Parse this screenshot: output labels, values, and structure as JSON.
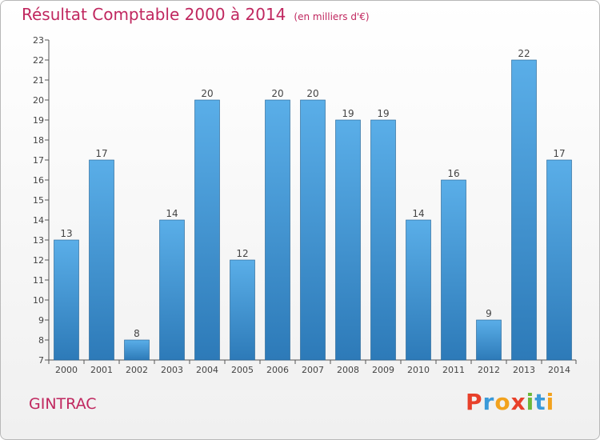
{
  "header": {
    "title": "Résultat Comptable 2000 à 2014",
    "subtitle": "(en milliers d'€)"
  },
  "footer": {
    "commune": "GINTRAC",
    "brand": "Proxiti",
    "brand_letters": [
      "P",
      "r",
      "o",
      "x",
      "i",
      "t",
      "i"
    ],
    "brand_colors": [
      "#e8402a",
      "#3a9ad9",
      "#f2a21d",
      "#e8402a",
      "#6cb83a",
      "#3a9ad9",
      "#f2a21d"
    ]
  },
  "colors": {
    "title": "#c0275f",
    "bar_light": "#5aaee8",
    "bar_dark": "#2d7ab8",
    "axis": "#555555",
    "text": "#444444"
  },
  "chart_data": {
    "type": "bar",
    "title": "Résultat Comptable 2000 à 2014",
    "subtitle": "(en milliers d'€)",
    "xlabel": "",
    "ylabel": "",
    "categories": [
      "2000",
      "2001",
      "2002",
      "2003",
      "2004",
      "2005",
      "2006",
      "2007",
      "2008",
      "2009",
      "2010",
      "2011",
      "2012",
      "2013",
      "2014"
    ],
    "values": [
      13,
      17,
      8,
      14,
      20,
      12,
      20,
      20,
      19,
      19,
      14,
      16,
      9,
      22,
      17
    ],
    "ylim": [
      7,
      23
    ],
    "yticks": [
      7,
      8,
      9,
      10,
      11,
      12,
      13,
      14,
      15,
      16,
      17,
      18,
      19,
      20,
      21,
      22,
      23
    ],
    "grid": false,
    "legend": "none"
  }
}
